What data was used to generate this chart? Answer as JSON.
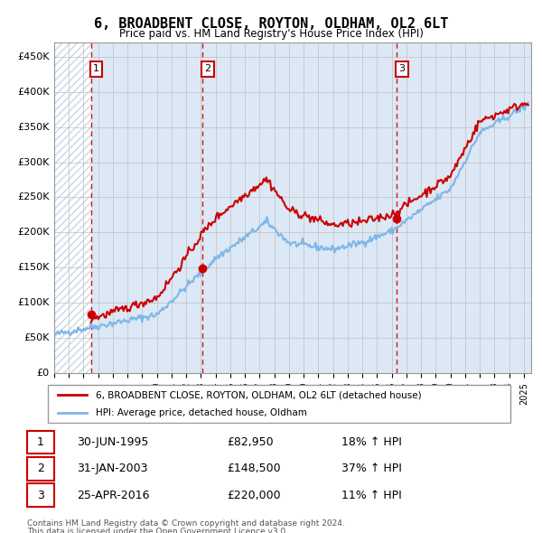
{
  "title": "6, BROADBENT CLOSE, ROYTON, OLDHAM, OL2 6LT",
  "subtitle": "Price paid vs. HM Land Registry's House Price Index (HPI)",
  "xlim_start": 1993.0,
  "xlim_end": 2025.5,
  "ylim_min": 0,
  "ylim_max": 470000,
  "yticks": [
    0,
    50000,
    100000,
    150000,
    200000,
    250000,
    300000,
    350000,
    400000,
    450000
  ],
  "ytick_labels": [
    "£0",
    "£50K",
    "£100K",
    "£150K",
    "£200K",
    "£250K",
    "£300K",
    "£350K",
    "£400K",
    "£450K"
  ],
  "sale_dates": [
    1995.5,
    2003.08,
    2016.32
  ],
  "sale_prices": [
    82950,
    148500,
    220000
  ],
  "sale_labels": [
    "1",
    "2",
    "3"
  ],
  "hpi_color": "#7eb6e8",
  "price_color": "#cc0000",
  "vline_color": "#cc0000",
  "legend_label_price": "6, BROADBENT CLOSE, ROYTON, OLDHAM, OL2 6LT (detached house)",
  "legend_label_hpi": "HPI: Average price, detached house, Oldham",
  "table_rows": [
    {
      "num": "1",
      "date": "30-JUN-1995",
      "price": "£82,950",
      "pct": "18% ↑ HPI"
    },
    {
      "num": "2",
      "date": "31-JAN-2003",
      "price": "£148,500",
      "pct": "37% ↑ HPI"
    },
    {
      "num": "3",
      "date": "25-APR-2016",
      "price": "£220,000",
      "pct": "11% ↑ HPI"
    }
  ],
  "footnote1": "Contains HM Land Registry data © Crown copyright and database right 2024.",
  "footnote2": "This data is licensed under the Open Government Licence v3.0.",
  "hatch_color": "#c8d8e8",
  "grid_color": "#c0c0c0",
  "chart_bg": "#dce8f5"
}
